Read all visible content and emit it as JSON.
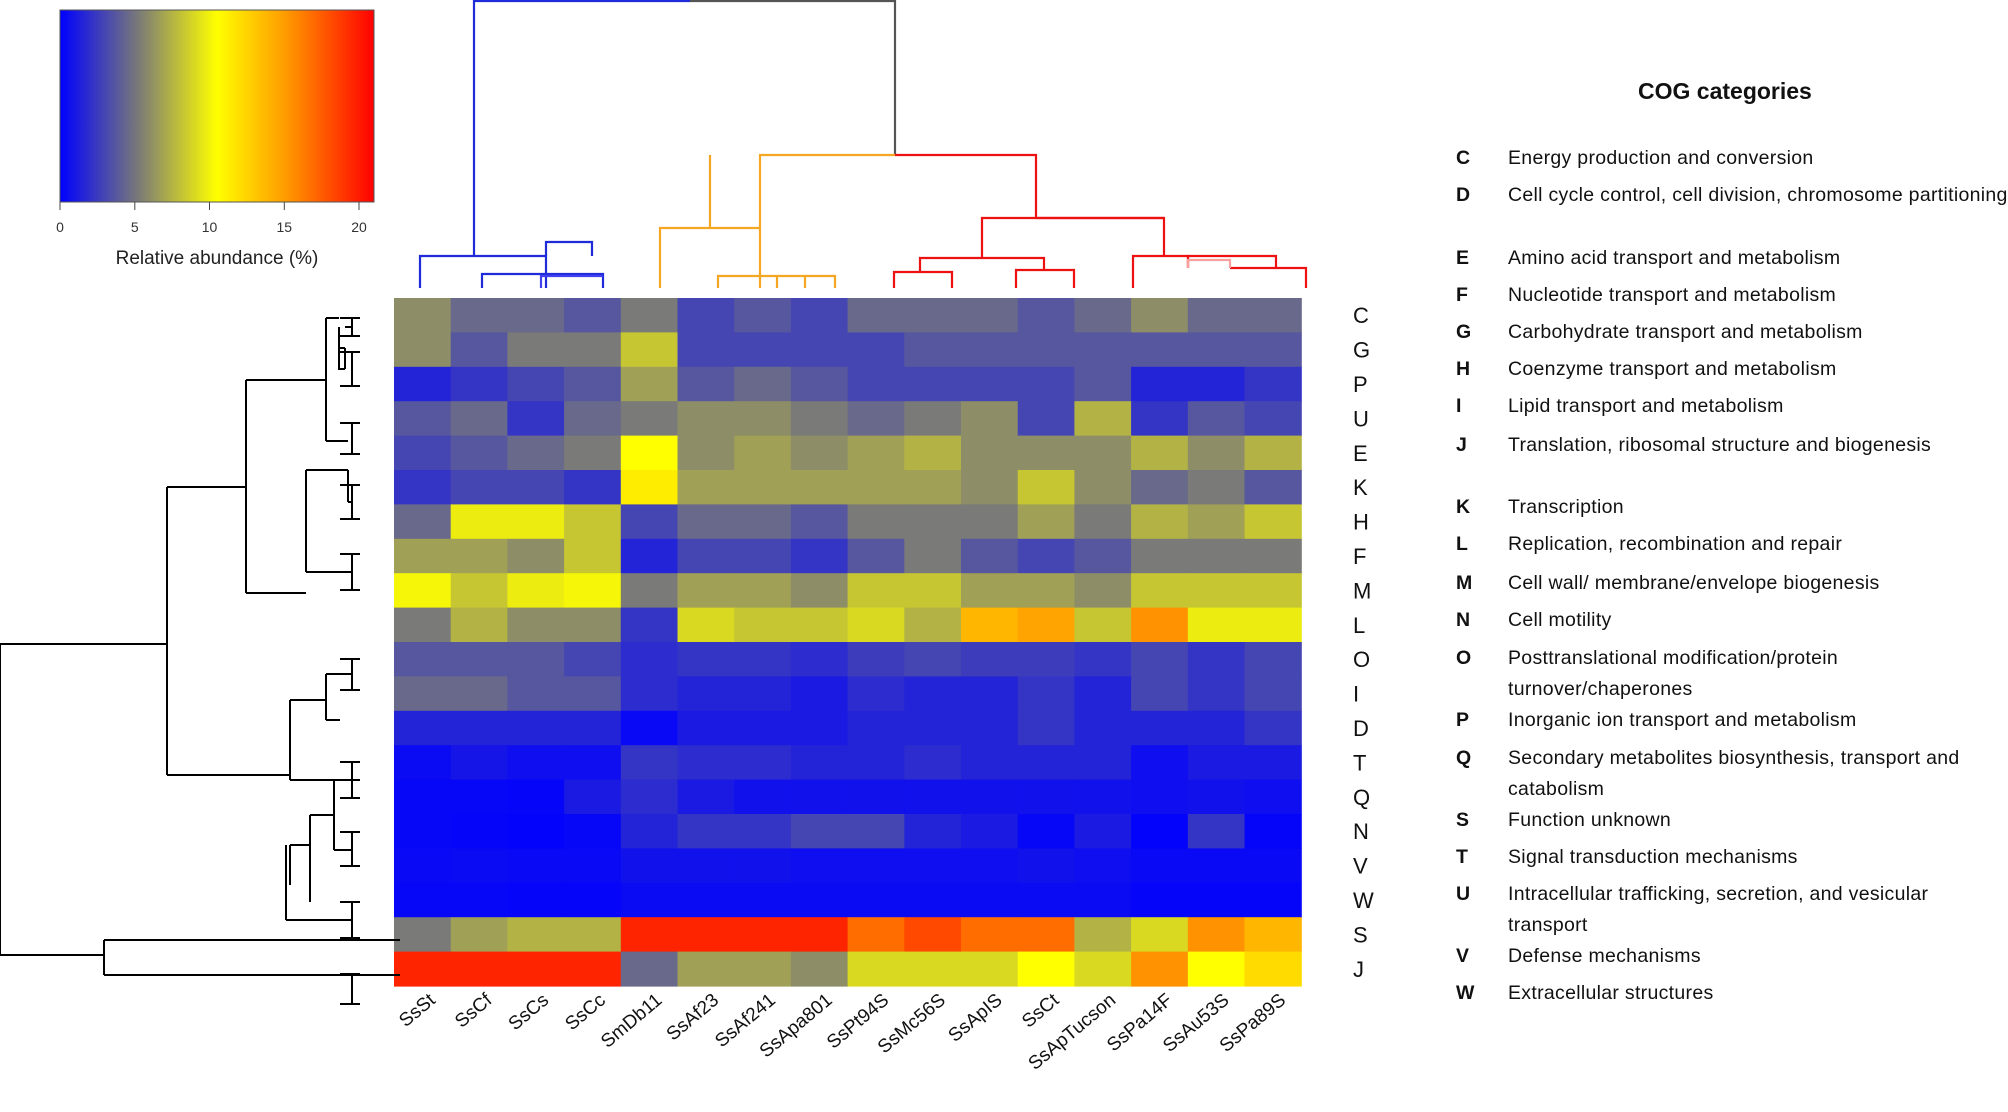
{
  "chart_data": {
    "type": "heatmap",
    "title": "",
    "colorbar": {
      "label": "Relative abundance (%)",
      "ticks": [
        "0",
        "5",
        "10",
        "15",
        "20"
      ],
      "range": [
        0,
        21
      ],
      "colors": [
        "#0000ff",
        "#7a7a78",
        "#ffff00",
        "#ff0000"
      ]
    },
    "columns": [
      "SsSt",
      "SsCf",
      "SsCs",
      "SsCc",
      "SmDb11",
      "SsAf23",
      "SsAf241",
      "SsApa801",
      "SsPt94S",
      "SsMc56S",
      "SsApIS",
      "SsCt",
      "SsApTucson",
      "SsPa14F",
      "SsAu53S",
      "SsPa89S"
    ],
    "rows": [
      "C",
      "G",
      "P",
      "U",
      "E",
      "K",
      "H",
      "F",
      "M",
      "L",
      "O",
      "I",
      "D",
      "T",
      "Q",
      "N",
      "V",
      "W",
      "S",
      "J"
    ],
    "values": [
      [
        8,
        6,
        6,
        5,
        7,
        4,
        5,
        4,
        6,
        6,
        6,
        5,
        6,
        8,
        6,
        6
      ],
      [
        8,
        5,
        7,
        7,
        11,
        4,
        4,
        4,
        4,
        5,
        5,
        5,
        5,
        5,
        5,
        5
      ],
      [
        2,
        3,
        4,
        5,
        9,
        5,
        6,
        5,
        4,
        4,
        4,
        4,
        5,
        2,
        2,
        3
      ],
      [
        5,
        6,
        3,
        6,
        7,
        8,
        8,
        7,
        6,
        7,
        8,
        4,
        10,
        3,
        5,
        4
      ],
      [
        4,
        5,
        6,
        7,
        14,
        8,
        9,
        8,
        9,
        10,
        8,
        8,
        8,
        10,
        8,
        10
      ],
      [
        3,
        4,
        4,
        3,
        14.5,
        9,
        9,
        9,
        9,
        9,
        8,
        11,
        8,
        6,
        7,
        5
      ],
      [
        6,
        13,
        13,
        11,
        4,
        6,
        6,
        5,
        7,
        7,
        7,
        9,
        7,
        10,
        9,
        11
      ],
      [
        9,
        9,
        8,
        11,
        2,
        4,
        4,
        3,
        5,
        7,
        5,
        4,
        5,
        7,
        7,
        7
      ],
      [
        13.5,
        11,
        13,
        13.5,
        7,
        9,
        9,
        8,
        11,
        11,
        9,
        9,
        8,
        11,
        11,
        11
      ],
      [
        7,
        10,
        8,
        8,
        3,
        12,
        11,
        11,
        12,
        10,
        16,
        16.5,
        11,
        17,
        13,
        13
      ],
      [
        5,
        5,
        5,
        4,
        2.5,
        3,
        3,
        2.5,
        3.5,
        4,
        3.5,
        3.5,
        3,
        4,
        3,
        4
      ],
      [
        6,
        6,
        5,
        5,
        2.5,
        2,
        2,
        1.5,
        2.5,
        2,
        2,
        3,
        2,
        4,
        3,
        4
      ],
      [
        2,
        2,
        2,
        2,
        0.5,
        1.5,
        1.5,
        1.5,
        2,
        2,
        2,
        3,
        2,
        2,
        2,
        3
      ],
      [
        0.6,
        1.2,
        0.8,
        0.8,
        3,
        2.5,
        2.5,
        2,
        2,
        2.5,
        2,
        2,
        2,
        0.8,
        1.5,
        1.5
      ],
      [
        0.4,
        0.4,
        0.3,
        1.5,
        2.5,
        1.5,
        1,
        1,
        1,
        1,
        1,
        1,
        1,
        0.8,
        1,
        0.8
      ],
      [
        0.4,
        0.3,
        0.2,
        0.4,
        2,
        3,
        3,
        4,
        4,
        2,
        1.5,
        0.4,
        1.5,
        0.2,
        3,
        0.3
      ],
      [
        0.5,
        0.6,
        0.5,
        0.5,
        1,
        1,
        1,
        0.8,
        0.8,
        0.8,
        0.8,
        1,
        0.8,
        0.5,
        0.5,
        0.5
      ],
      [
        0.4,
        0.4,
        0.3,
        0.3,
        0.6,
        0.6,
        0.6,
        0.6,
        0.6,
        0.6,
        0.6,
        0.6,
        0.6,
        0.3,
        0.3,
        0.3
      ],
      [
        7,
        9,
        10,
        10,
        20,
        20,
        20,
        20,
        18,
        19,
        18,
        18,
        10,
        12,
        17,
        16
      ],
      [
        20,
        20,
        20,
        20,
        6,
        9,
        9,
        8,
        12,
        12,
        12,
        14,
        12,
        17,
        14,
        15
      ]
    ]
  },
  "legend": {
    "title": "COG categories",
    "items": [
      {
        "code": "C",
        "desc": "Energy production and conversion"
      },
      {
        "code": "D",
        "desc": "Cell cycle control, cell division, chromosome partitioning"
      },
      {
        "code": "E",
        "desc": "Amino acid transport and metabolism"
      },
      {
        "code": "F",
        "desc": "Nucleotide transport and metabolism"
      },
      {
        "code": "G",
        "desc": "Carbohydrate transport and metabolism"
      },
      {
        "code": "H",
        "desc": "Coenzyme transport and metabolism"
      },
      {
        "code": "I",
        "desc": "Lipid transport and metabolism"
      },
      {
        "code": "J",
        "desc": "Translation, ribosomal structure and biogenesis"
      },
      {
        "code": "K",
        "desc": "Transcription"
      },
      {
        "code": "L",
        "desc": "Replication, recombination and repair"
      },
      {
        "code": "M",
        "desc": "Cell wall/ membrane/envelope biogenesis"
      },
      {
        "code": "N",
        "desc": "Cell motility"
      },
      {
        "code": "O",
        "desc": "Posttranslational modification/protein turnover/chaperones"
      },
      {
        "code": "P",
        "desc": "Inorganic ion transport and metabolism"
      },
      {
        "code": "Q",
        "desc": "Secondary metabolites biosynthesis, transport and catabolism"
      },
      {
        "code": "S",
        "desc": "Function unknown"
      },
      {
        "code": "T",
        "desc": "Signal transduction mechanisms"
      },
      {
        "code": "U",
        "desc": "Intracellular trafficking, secretion, and vesicular transport"
      },
      {
        "code": "V",
        "desc": "Defense mechanisms"
      },
      {
        "code": "W",
        "desc": "Extracellular structures"
      }
    ]
  }
}
